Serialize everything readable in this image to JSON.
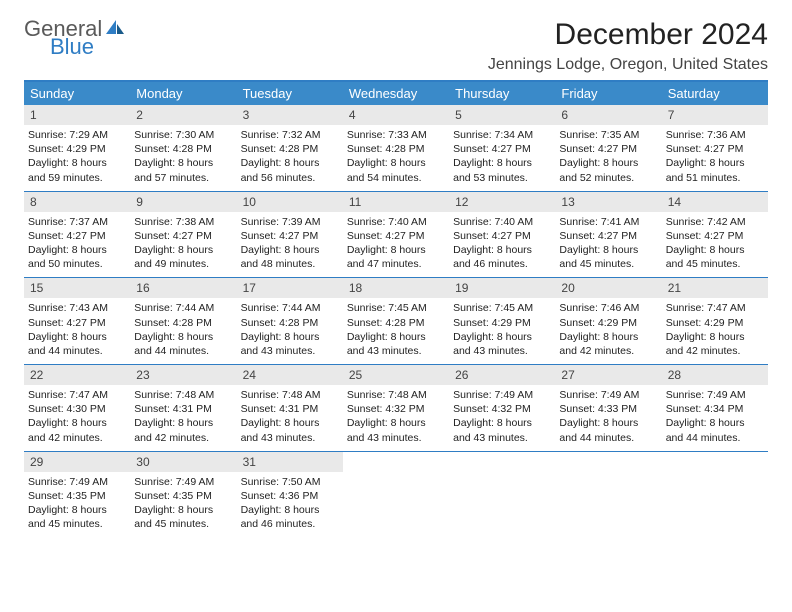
{
  "logo": {
    "word1": "General",
    "word2": "Blue"
  },
  "title": "December 2024",
  "location": "Jennings Lodge, Oregon, United States",
  "colors": {
    "header_bg": "#3a8ac9",
    "header_text": "#ffffff",
    "rule": "#2f7dc4",
    "daynum_bg": "#e9e9e9",
    "logo_gray": "#5a5a5a",
    "logo_blue": "#2f7dc4",
    "page_bg": "#ffffff",
    "body_text": "#222222"
  },
  "day_names": [
    "Sunday",
    "Monday",
    "Tuesday",
    "Wednesday",
    "Thursday",
    "Friday",
    "Saturday"
  ],
  "weeks": [
    [
      {
        "n": "1",
        "sunrise": "7:29 AM",
        "sunset": "4:29 PM",
        "daylight": "8 hours and 59 minutes."
      },
      {
        "n": "2",
        "sunrise": "7:30 AM",
        "sunset": "4:28 PM",
        "daylight": "8 hours and 57 minutes."
      },
      {
        "n": "3",
        "sunrise": "7:32 AM",
        "sunset": "4:28 PM",
        "daylight": "8 hours and 56 minutes."
      },
      {
        "n": "4",
        "sunrise": "7:33 AM",
        "sunset": "4:28 PM",
        "daylight": "8 hours and 54 minutes."
      },
      {
        "n": "5",
        "sunrise": "7:34 AM",
        "sunset": "4:27 PM",
        "daylight": "8 hours and 53 minutes."
      },
      {
        "n": "6",
        "sunrise": "7:35 AM",
        "sunset": "4:27 PM",
        "daylight": "8 hours and 52 minutes."
      },
      {
        "n": "7",
        "sunrise": "7:36 AM",
        "sunset": "4:27 PM",
        "daylight": "8 hours and 51 minutes."
      }
    ],
    [
      {
        "n": "8",
        "sunrise": "7:37 AM",
        "sunset": "4:27 PM",
        "daylight": "8 hours and 50 minutes."
      },
      {
        "n": "9",
        "sunrise": "7:38 AM",
        "sunset": "4:27 PM",
        "daylight": "8 hours and 49 minutes."
      },
      {
        "n": "10",
        "sunrise": "7:39 AM",
        "sunset": "4:27 PM",
        "daylight": "8 hours and 48 minutes."
      },
      {
        "n": "11",
        "sunrise": "7:40 AM",
        "sunset": "4:27 PM",
        "daylight": "8 hours and 47 minutes."
      },
      {
        "n": "12",
        "sunrise": "7:40 AM",
        "sunset": "4:27 PM",
        "daylight": "8 hours and 46 minutes."
      },
      {
        "n": "13",
        "sunrise": "7:41 AM",
        "sunset": "4:27 PM",
        "daylight": "8 hours and 45 minutes."
      },
      {
        "n": "14",
        "sunrise": "7:42 AM",
        "sunset": "4:27 PM",
        "daylight": "8 hours and 45 minutes."
      }
    ],
    [
      {
        "n": "15",
        "sunrise": "7:43 AM",
        "sunset": "4:27 PM",
        "daylight": "8 hours and 44 minutes."
      },
      {
        "n": "16",
        "sunrise": "7:44 AM",
        "sunset": "4:28 PM",
        "daylight": "8 hours and 44 minutes."
      },
      {
        "n": "17",
        "sunrise": "7:44 AM",
        "sunset": "4:28 PM",
        "daylight": "8 hours and 43 minutes."
      },
      {
        "n": "18",
        "sunrise": "7:45 AM",
        "sunset": "4:28 PM",
        "daylight": "8 hours and 43 minutes."
      },
      {
        "n": "19",
        "sunrise": "7:45 AM",
        "sunset": "4:29 PM",
        "daylight": "8 hours and 43 minutes."
      },
      {
        "n": "20",
        "sunrise": "7:46 AM",
        "sunset": "4:29 PM",
        "daylight": "8 hours and 42 minutes."
      },
      {
        "n": "21",
        "sunrise": "7:47 AM",
        "sunset": "4:29 PM",
        "daylight": "8 hours and 42 minutes."
      }
    ],
    [
      {
        "n": "22",
        "sunrise": "7:47 AM",
        "sunset": "4:30 PM",
        "daylight": "8 hours and 42 minutes."
      },
      {
        "n": "23",
        "sunrise": "7:48 AM",
        "sunset": "4:31 PM",
        "daylight": "8 hours and 42 minutes."
      },
      {
        "n": "24",
        "sunrise": "7:48 AM",
        "sunset": "4:31 PM",
        "daylight": "8 hours and 43 minutes."
      },
      {
        "n": "25",
        "sunrise": "7:48 AM",
        "sunset": "4:32 PM",
        "daylight": "8 hours and 43 minutes."
      },
      {
        "n": "26",
        "sunrise": "7:49 AM",
        "sunset": "4:32 PM",
        "daylight": "8 hours and 43 minutes."
      },
      {
        "n": "27",
        "sunrise": "7:49 AM",
        "sunset": "4:33 PM",
        "daylight": "8 hours and 44 minutes."
      },
      {
        "n": "28",
        "sunrise": "7:49 AM",
        "sunset": "4:34 PM",
        "daylight": "8 hours and 44 minutes."
      }
    ],
    [
      {
        "n": "29",
        "sunrise": "7:49 AM",
        "sunset": "4:35 PM",
        "daylight": "8 hours and 45 minutes."
      },
      {
        "n": "30",
        "sunrise": "7:49 AM",
        "sunset": "4:35 PM",
        "daylight": "8 hours and 45 minutes."
      },
      {
        "n": "31",
        "sunrise": "7:50 AM",
        "sunset": "4:36 PM",
        "daylight": "8 hours and 46 minutes."
      },
      null,
      null,
      null,
      null
    ]
  ],
  "labels": {
    "sunrise": "Sunrise: ",
    "sunset": "Sunset: ",
    "daylight": "Daylight: "
  }
}
